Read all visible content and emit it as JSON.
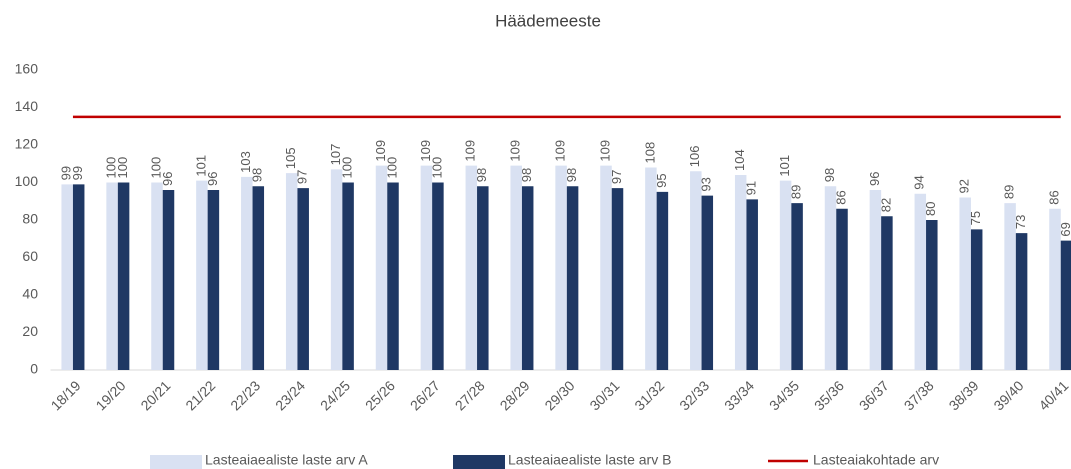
{
  "chart_data": {
    "type": "bar",
    "title": "Häädemeeste",
    "categories": [
      "18/19",
      "19/20",
      "20/21",
      "21/22",
      "22/23",
      "23/24",
      "24/25",
      "25/26",
      "26/27",
      "27/28",
      "28/29",
      "29/30",
      "30/31",
      "31/32",
      "32/33",
      "33/34",
      "34/35",
      "35/36",
      "36/37",
      "37/38",
      "38/39",
      "39/40",
      "40/41"
    ],
    "series": [
      {
        "name": "Lasteaiaealiste laste arv A",
        "color": "#d9e1f2",
        "values": [
          99,
          100,
          100,
          101,
          103,
          105,
          107,
          109,
          109,
          109,
          109,
          109,
          109,
          108,
          106,
          104,
          101,
          98,
          96,
          94,
          92,
          89,
          86
        ]
      },
      {
        "name": "Lasteaiaealiste laste arv B",
        "color": "#1f3864",
        "values": [
          99,
          100,
          96,
          96,
          98,
          97,
          100,
          100,
          100,
          98,
          98,
          98,
          97,
          95,
          93,
          91,
          89,
          86,
          82,
          80,
          75,
          73,
          69
        ]
      },
      {
        "name": "Lasteaiakohtade arv",
        "color": "#c00000",
        "type": "line",
        "values": [
          135,
          135,
          135,
          135,
          135,
          135,
          135,
          135,
          135,
          135,
          135,
          135,
          135,
          135,
          135,
          135,
          135,
          135,
          135,
          135,
          135,
          135,
          135
        ]
      }
    ],
    "ylim": [
      0,
      160
    ],
    "yticks": [
      0,
      20,
      40,
      60,
      80,
      100,
      120,
      140,
      160
    ],
    "grid": false,
    "legend": "bottom"
  }
}
